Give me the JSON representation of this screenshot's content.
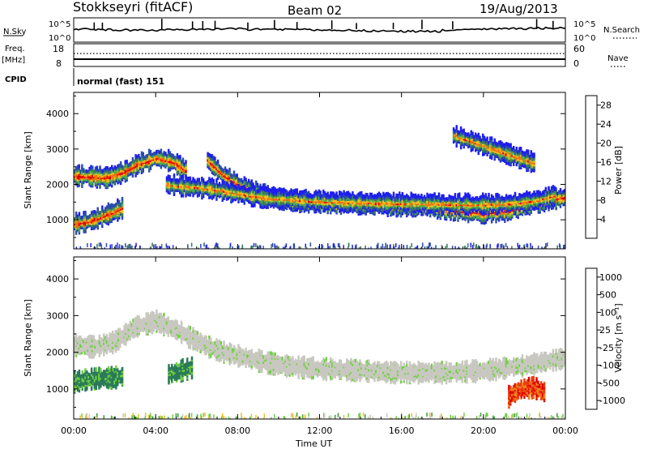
{
  "header": {
    "station": "Stokkseyri (fitACF)",
    "beam": "Beam 02",
    "date": "19/Aug/2013"
  },
  "strip_panels": {
    "nsky": {
      "label": "N.Sky",
      "tick_top": "10^5",
      "tick_bottom": "10^0",
      "right_label": "N.Search",
      "right_tick_top": "10^5",
      "right_tick_bottom": "10^0"
    },
    "freq": {
      "label_line1": "Freq.",
      "label_line2": "[MHz]",
      "tick_top": "18",
      "tick_bottom": "8",
      "right_label": "Nave",
      "right_tick_top": "60",
      "right_tick_bottom": "0"
    },
    "cpid": {
      "label": "CPID",
      "value": "normal (fast) 151"
    }
  },
  "chart_data": [
    {
      "type": "heatmap",
      "title": "",
      "ylabel": "Slant Range [km]",
      "xlabel": "",
      "ylim": [
        180,
        4600
      ],
      "y_ticks": [
        "1000",
        "2000",
        "3000",
        "4000"
      ],
      "x_ticks": [
        "00:00",
        "04:00",
        "08:00",
        "12:00",
        "16:00",
        "20:00",
        "00:00"
      ],
      "colorbar": {
        "label": "Power [dB]",
        "ticks": [
          "4",
          "8",
          "12",
          "16",
          "20",
          "24",
          "28"
        ],
        "range": [
          0,
          30
        ],
        "colors": [
          "#1e1ef0",
          "#2a4ab0",
          "#3a7a5a",
          "#50b050",
          "#f0c020",
          "#f07010",
          "#e00000"
        ]
      },
      "series": [
        {
          "hours": [
            0,
            0.6,
            1.2,
            1.8,
            2.4
          ],
          "range_km": [
            900,
            950,
            1050,
            1200,
            1350
          ]
        },
        {
          "hours": [
            0,
            0.8,
            1.6,
            2.4,
            3.2,
            4,
            4.8,
            5.5
          ],
          "range_km": [
            2250,
            2230,
            2200,
            2350,
            2600,
            2750,
            2650,
            2400
          ]
        },
        {
          "hours": [
            6.5,
            7.2,
            8,
            9,
            10,
            11,
            12,
            13,
            14,
            15,
            16,
            17,
            18,
            19,
            20,
            21,
            22,
            23,
            24
          ],
          "range_km": [
            2700,
            2300,
            2000,
            1750,
            1600,
            1520,
            1500,
            1480,
            1450,
            1420,
            1400,
            1380,
            1320,
            1250,
            1200,
            1250,
            1400,
            1550,
            1650
          ]
        },
        {
          "hours": [
            4.5,
            5.5,
            6.5,
            7.5,
            8.5,
            9.5,
            10.5,
            11.5,
            12.5,
            13.5,
            14.5,
            15.5,
            16.5,
            17.5,
            18.5,
            19.5,
            20.5,
            21.5,
            22.5,
            23.5
          ],
          "range_km": [
            2000,
            1950,
            1900,
            1800,
            1700,
            1620,
            1580,
            1540,
            1520,
            1500,
            1490,
            1480,
            1470,
            1460,
            1450,
            1440,
            1450,
            1480,
            1550,
            1700
          ]
        },
        {
          "hours": [
            18.5,
            19.5,
            20.5,
            21.5,
            22.5
          ],
          "range_km": [
            3400,
            3200,
            3000,
            2800,
            2600
          ]
        }
      ]
    },
    {
      "type": "heatmap",
      "title": "",
      "ylabel": "Slant Range [km]",
      "xlabel": "Time UT",
      "ylim": [
        180,
        4600
      ],
      "y_ticks": [
        "1000",
        "2000",
        "3000",
        "4000"
      ],
      "x_ticks": [
        "00:00",
        "04:00",
        "08:00",
        "12:00",
        "16:00",
        "20:00",
        "00:00"
      ],
      "colorbar": {
        "label": "Velocity [m s⁻¹]",
        "ticks": [
          "1000",
          "500",
          "100",
          "25",
          "-25",
          "-100",
          "-500",
          "-1000"
        ],
        "range": [
          -1200,
          1200
        ],
        "colors": [
          "#2040b0",
          "#2a7a5a",
          "#3aa03a",
          "#70d040",
          "#c8c8c0",
          "#f0c020",
          "#f08020",
          "#e84010",
          "#e00000"
        ]
      },
      "series": [
        {
          "hours": [
            0,
            0.6,
            1.2,
            1.8,
            2.4
          ],
          "range_km": [
            1200,
            1250,
            1300,
            1300,
            1350
          ]
        },
        {
          "hours": [
            4.6,
            5.2,
            5.8
          ],
          "range_km": [
            1400,
            1500,
            1600
          ]
        },
        {
          "hours": [
            21.2,
            21.8,
            22.4,
            23
          ],
          "range_km": [
            800,
            1000,
            1050,
            900
          ]
        },
        {
          "hours": [
            0,
            1,
            2,
            3,
            4,
            5,
            6,
            7,
            8,
            10,
            12,
            14,
            16,
            18,
            20,
            22,
            24
          ],
          "range_km": [
            2200,
            2150,
            2300,
            2700,
            2850,
            2600,
            2300,
            2050,
            1900,
            1650,
            1550,
            1500,
            1450,
            1450,
            1500,
            1650,
            1850
          ]
        }
      ]
    }
  ]
}
